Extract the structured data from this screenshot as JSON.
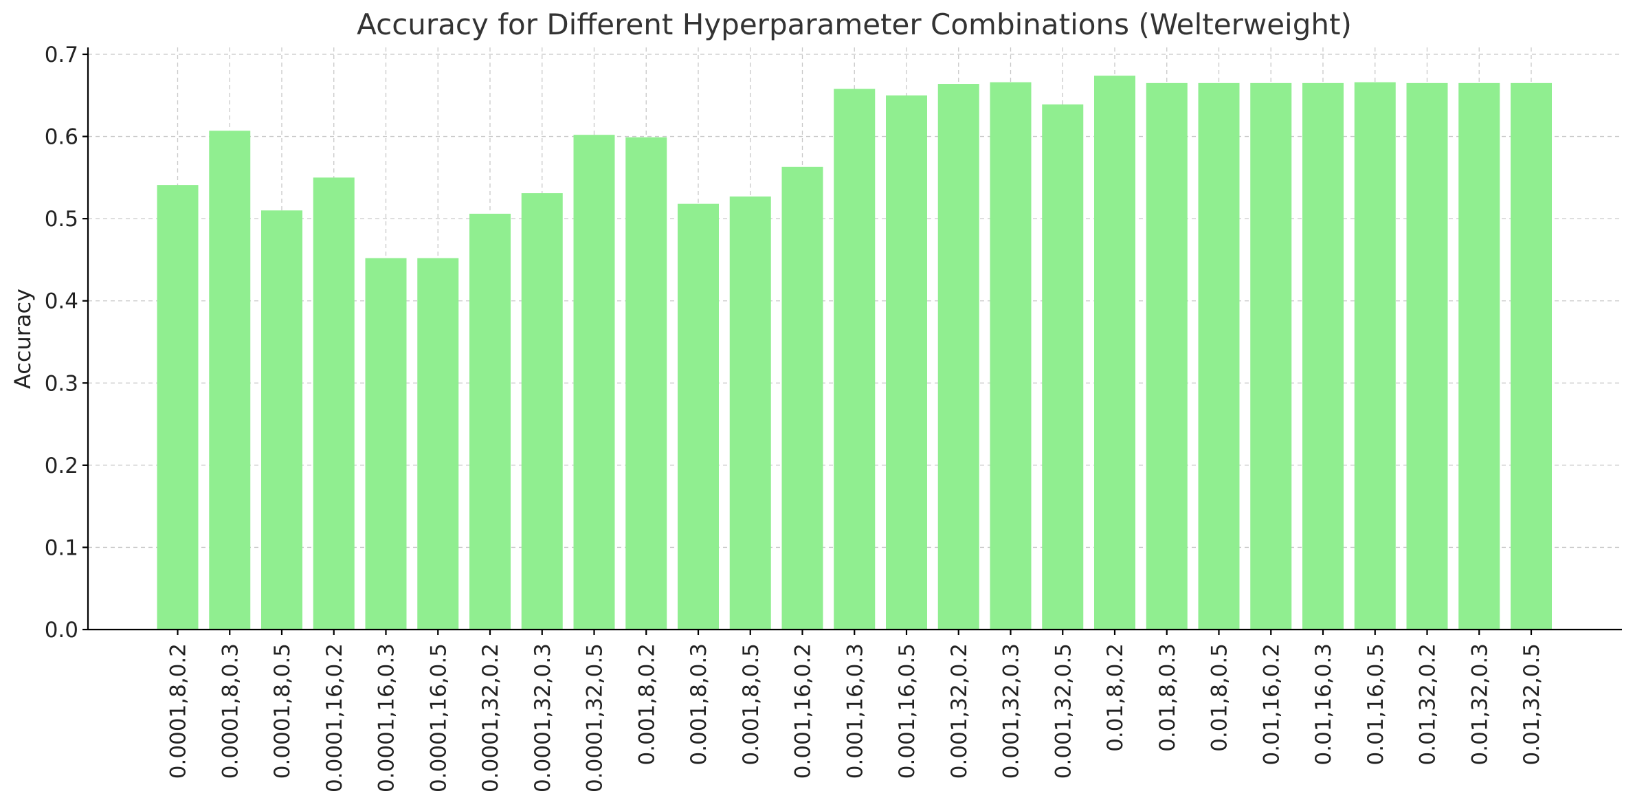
{
  "chart_data": {
    "type": "bar",
    "title": "Accuracy for Different Hyperparameter Combinations (Welterweight)",
    "xlabel": "",
    "ylabel": "Accuracy",
    "ylim": [
      0,
      0.7
    ],
    "yticks": [
      "0.0",
      "0.1",
      "0.2",
      "0.3",
      "0.4",
      "0.5",
      "0.6",
      "0.7"
    ],
    "grid": true,
    "bar_color": "#90ee90",
    "categories": [
      "0.0001,8,0.2",
      "0.0001,8,0.3",
      "0.0001,8,0.5",
      "0.0001,16,0.2",
      "0.0001,16,0.3",
      "0.0001,16,0.5",
      "0.0001,32,0.2",
      "0.0001,32,0.3",
      "0.0001,32,0.5",
      "0.001,8,0.2",
      "0.001,8,0.3",
      "0.001,8,0.5",
      "0.001,16,0.2",
      "0.001,16,0.3",
      "0.001,16,0.5",
      "0.001,32,0.2",
      "0.001,32,0.3",
      "0.001,32,0.5",
      "0.01,8,0.2",
      "0.01,8,0.3",
      "0.01,8,0.5",
      "0.01,16,0.2",
      "0.01,16,0.3",
      "0.01,16,0.5",
      "0.01,32,0.2",
      "0.01,32,0.3",
      "0.01,32,0.5"
    ],
    "values": [
      0.541,
      0.607,
      0.51,
      0.55,
      0.452,
      0.452,
      0.506,
      0.531,
      0.602,
      0.599,
      0.518,
      0.527,
      0.563,
      0.658,
      0.65,
      0.664,
      0.666,
      0.639,
      0.674,
      0.665,
      0.665,
      0.665,
      0.665,
      0.666,
      0.665,
      0.665,
      0.665
    ]
  }
}
